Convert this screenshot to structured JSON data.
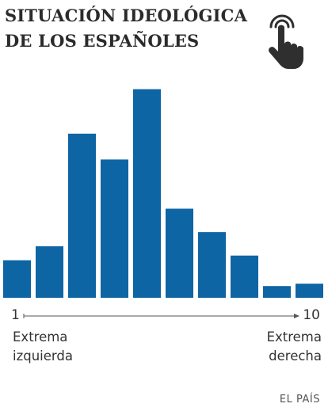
{
  "header": {
    "title_line1": "SITUACIÓN IDEOLÓGICA",
    "title_line2": "DE LOS ESPAÑOLES",
    "icon": "tap-hand-icon"
  },
  "axis": {
    "min_label": "1",
    "max_label": "10",
    "left_label_line1": "Extrema",
    "left_label_line2": "izquierda",
    "right_label_line1": "Extrema",
    "right_label_line2": "derecha"
  },
  "source": "EL PAÍS",
  "colors": {
    "bar": "#0e65a3",
    "axis_line": "#555555",
    "text": "#333333"
  },
  "chart_data": {
    "type": "bar",
    "title": "SITUACIÓN IDEOLÓGICA DE LOS ESPAÑOLES",
    "xlabel": "",
    "ylabel": "",
    "scale_range": [
      1,
      10
    ],
    "values": [
      16,
      22,
      70,
      59,
      89,
      38,
      28,
      18,
      5,
      6
    ],
    "ylim": [
      0,
      100
    ]
  }
}
